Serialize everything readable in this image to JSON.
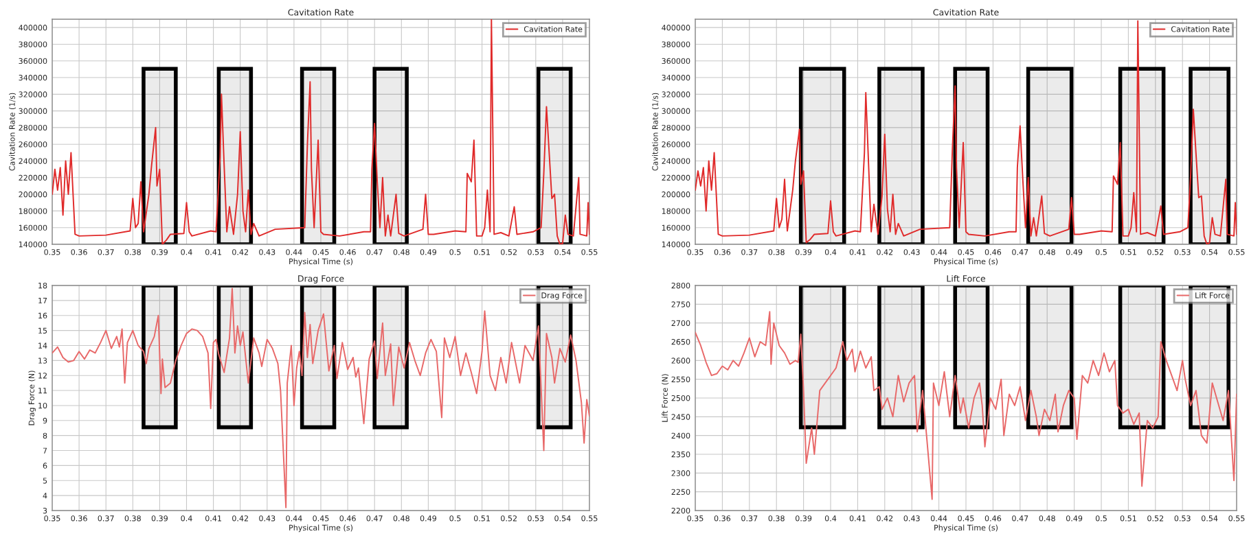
{
  "chart_data": [
    {
      "type": "line",
      "title": "Cavitation Rate",
      "xlabel": "Physical Time (s)",
      "ylabel": "Cavitation Rate (1/s)",
      "legend": "top right",
      "grid": true,
      "line_style": "solid",
      "xlim": [
        0.35,
        0.55
      ],
      "xticks": [
        0.35,
        0.36,
        0.37,
        0.38,
        0.39,
        0.4,
        0.41,
        0.42,
        0.43,
        0.44,
        0.45,
        0.46,
        0.47,
        0.48,
        0.49,
        0.5,
        0.51,
        0.52,
        0.53,
        0.54,
        0.55
      ],
      "ylim": [
        140000,
        410000
      ],
      "yticks": [
        140000,
        160000,
        180000,
        200000,
        220000,
        240000,
        260000,
        280000,
        300000,
        320000,
        340000,
        360000,
        380000,
        400000
      ],
      "bands": [
        {
          "axis": "x",
          "from": 0.384,
          "to": 0.396,
          "color": "#000000"
        },
        {
          "axis": "x",
          "from": 0.412,
          "to": 0.424,
          "color": "#000000"
        },
        {
          "axis": "x",
          "from": 0.443,
          "to": 0.455,
          "color": "#000000"
        },
        {
          "axis": "x",
          "from": 0.47,
          "to": 0.482,
          "color": "#000000"
        },
        {
          "axis": "x",
          "from": 0.531,
          "to": 0.543,
          "color": "#000000"
        }
      ],
      "series": [
        {
          "name": "Cavitation Rate",
          "color": "#e02a2a",
          "x": [
            0.35,
            0.351,
            0.352,
            0.353,
            0.354,
            0.355,
            0.356,
            0.357,
            0.3585,
            0.36,
            0.37,
            0.379,
            0.38,
            0.381,
            0.382,
            0.383,
            0.384,
            0.386,
            0.387,
            0.3885,
            0.389,
            0.39,
            0.391,
            0.3925,
            0.394,
            0.399,
            0.4,
            0.401,
            0.402,
            0.409,
            0.411,
            0.4125,
            0.413,
            0.414,
            0.415,
            0.416,
            0.4175,
            0.419,
            0.42,
            0.421,
            0.422,
            0.423,
            0.424,
            0.425,
            0.427,
            0.433,
            0.444,
            0.445,
            0.446,
            0.4465,
            0.4475,
            0.449,
            0.45,
            0.451,
            0.457,
            0.466,
            0.4685,
            0.469,
            0.47,
            0.471,
            0.472,
            0.473,
            0.474,
            0.475,
            0.476,
            0.478,
            0.479,
            0.481,
            0.488,
            0.489,
            0.49,
            0.492,
            0.5,
            0.504,
            0.5045,
            0.506,
            0.507,
            0.508,
            0.51,
            0.511,
            0.512,
            0.513,
            0.5135,
            0.5145,
            0.517,
            0.52,
            0.522,
            0.523,
            0.529,
            0.532,
            0.533,
            0.534,
            0.535,
            0.536,
            0.537,
            0.538,
            0.539,
            0.54,
            0.541,
            0.542,
            0.544,
            0.546,
            0.5465,
            0.549,
            0.5495,
            0.55
          ],
          "values": [
            200000,
            230000,
            205000,
            232000,
            175000,
            240000,
            200000,
            250000,
            152000,
            150000,
            151000,
            156000,
            195000,
            160000,
            165000,
            215000,
            155000,
            200000,
            235000,
            280000,
            210000,
            230000,
            140000,
            145000,
            152000,
            153000,
            190000,
            155000,
            150000,
            156000,
            155000,
            245000,
            320000,
            235000,
            155000,
            185000,
            152000,
            200000,
            275000,
            180000,
            155000,
            205000,
            152000,
            165000,
            150000,
            158000,
            160000,
            260000,
            335000,
            230000,
            160000,
            265000,
            155000,
            152000,
            150000,
            155000,
            155000,
            230000,
            285000,
            215000,
            160000,
            220000,
            150000,
            175000,
            150000,
            200000,
            153000,
            150000,
            158000,
            200000,
            152000,
            152000,
            156000,
            155000,
            225000,
            215000,
            265000,
            150000,
            150000,
            160000,
            205000,
            155000,
            410000,
            152000,
            154000,
            150000,
            185000,
            152000,
            155000,
            160000,
            225000,
            305000,
            250000,
            195000,
            200000,
            150000,
            140000,
            141000,
            175000,
            152000,
            150000,
            220000,
            152000,
            150000,
            190000,
            152000
          ]
        }
      ]
    },
    {
      "type": "line",
      "title": "Cavitation Rate",
      "xlabel": "Physical Time (s)",
      "ylabel": "Cavitation Rate (1/s)",
      "legend": "top right",
      "grid": true,
      "line_style": "solid",
      "xlim": [
        0.35,
        0.55
      ],
      "xticks": [
        0.35,
        0.36,
        0.37,
        0.38,
        0.39,
        0.4,
        0.41,
        0.42,
        0.43,
        0.44,
        0.45,
        0.46,
        0.47,
        0.48,
        0.49,
        0.5,
        0.51,
        0.52,
        0.53,
        0.54,
        0.55
      ],
      "ylim": [
        140000,
        410000
      ],
      "yticks": [
        140000,
        160000,
        180000,
        200000,
        220000,
        240000,
        260000,
        280000,
        300000,
        320000,
        340000,
        360000,
        380000,
        400000
      ],
      "bands": [
        {
          "axis": "x",
          "from": 0.389,
          "to": 0.405,
          "color": "#000000"
        },
        {
          "axis": "x",
          "from": 0.418,
          "to": 0.434,
          "color": "#000000"
        },
        {
          "axis": "x",
          "from": 0.446,
          "to": 0.458,
          "color": "#000000"
        },
        {
          "axis": "x",
          "from": 0.473,
          "to": 0.489,
          "color": "#000000"
        },
        {
          "axis": "x",
          "from": 0.507,
          "to": 0.523,
          "color": "#000000"
        },
        {
          "axis": "x",
          "from": 0.533,
          "to": 0.547,
          "color": "#000000"
        }
      ],
      "series": [
        {
          "name": "Cavitation Rate",
          "color": "#e02a2a",
          "x": [
            0.35,
            0.351,
            0.352,
            0.353,
            0.354,
            0.355,
            0.356,
            0.357,
            0.3585,
            0.36,
            0.37,
            0.379,
            0.38,
            0.381,
            0.382,
            0.383,
            0.384,
            0.386,
            0.387,
            0.3885,
            0.389,
            0.39,
            0.391,
            0.3925,
            0.394,
            0.399,
            0.4,
            0.401,
            0.402,
            0.409,
            0.411,
            0.4125,
            0.413,
            0.414,
            0.415,
            0.416,
            0.4175,
            0.419,
            0.42,
            0.421,
            0.422,
            0.423,
            0.424,
            0.425,
            0.427,
            0.433,
            0.444,
            0.445,
            0.446,
            0.4465,
            0.4475,
            0.449,
            0.45,
            0.451,
            0.457,
            0.466,
            0.4685,
            0.469,
            0.47,
            0.471,
            0.472,
            0.473,
            0.474,
            0.475,
            0.476,
            0.478,
            0.479,
            0.481,
            0.488,
            0.489,
            0.49,
            0.492,
            0.5,
            0.504,
            0.5045,
            0.506,
            0.507,
            0.508,
            0.51,
            0.511,
            0.512,
            0.513,
            0.5135,
            0.5145,
            0.517,
            0.52,
            0.522,
            0.523,
            0.529,
            0.532,
            0.533,
            0.534,
            0.535,
            0.536,
            0.537,
            0.538,
            0.539,
            0.54,
            0.541,
            0.542,
            0.544,
            0.546,
            0.5465,
            0.549,
            0.5495,
            0.55
          ],
          "values": [
            205000,
            228000,
            210000,
            232000,
            180000,
            240000,
            205000,
            250000,
            152000,
            150000,
            151000,
            156000,
            195000,
            160000,
            170000,
            218000,
            156000,
            205000,
            240000,
            278000,
            212000,
            228000,
            142000,
            146000,
            152000,
            153000,
            192000,
            155000,
            150000,
            156000,
            155000,
            250000,
            322000,
            238000,
            155000,
            188000,
            152000,
            198000,
            272000,
            182000,
            155000,
            200000,
            152000,
            165000,
            150000,
            158000,
            160000,
            255000,
            330000,
            232000,
            160000,
            262000,
            155000,
            152000,
            150000,
            155000,
            155000,
            232000,
            282000,
            218000,
            160000,
            220000,
            150000,
            172000,
            150000,
            198000,
            153000,
            150000,
            158000,
            196000,
            152000,
            152000,
            156000,
            155000,
            222000,
            212000,
            262000,
            150000,
            150000,
            160000,
            202000,
            155000,
            408000,
            152000,
            154000,
            150000,
            186000,
            152000,
            155000,
            160000,
            222000,
            302000,
            248000,
            196000,
            198000,
            150000,
            140000,
            142000,
            172000,
            152000,
            150000,
            218000,
            152000,
            150000,
            190000,
            152000
          ]
        }
      ]
    },
    {
      "type": "line",
      "title": "Drag Force",
      "xlabel": "Physical Time (s)",
      "ylabel": "Drag Force (N)",
      "legend": "top right",
      "grid": true,
      "line_style": "solid",
      "xlim": [
        0.35,
        0.55
      ],
      "xticks": [
        0.35,
        0.36,
        0.37,
        0.38,
        0.39,
        0.4,
        0.41,
        0.42,
        0.43,
        0.44,
        0.45,
        0.46,
        0.47,
        0.48,
        0.49,
        0.5,
        0.51,
        0.52,
        0.53,
        0.54,
        0.55
      ],
      "ylim": [
        3,
        18
      ],
      "yticks": [
        3,
        4,
        5,
        6,
        7,
        8,
        9,
        10,
        11,
        12,
        13,
        14,
        15,
        16,
        17,
        18
      ],
      "bands": [
        {
          "axis": "x",
          "from": 0.384,
          "to": 0.396,
          "color": "#000000"
        },
        {
          "axis": "x",
          "from": 0.412,
          "to": 0.424,
          "color": "#000000"
        },
        {
          "axis": "x",
          "from": 0.443,
          "to": 0.455,
          "color": "#000000"
        },
        {
          "axis": "x",
          "from": 0.47,
          "to": 0.482,
          "color": "#000000"
        },
        {
          "axis": "x",
          "from": 0.531,
          "to": 0.543,
          "color": "#000000"
        }
      ],
      "series": [
        {
          "name": "Drag Force",
          "color": "#e86868",
          "x": [
            0.35,
            0.352,
            0.354,
            0.356,
            0.358,
            0.36,
            0.362,
            0.364,
            0.366,
            0.368,
            0.37,
            0.372,
            0.374,
            0.375,
            0.376,
            0.377,
            0.378,
            0.38,
            0.382,
            0.384,
            0.385,
            0.386,
            0.388,
            0.3895,
            0.3905,
            0.391,
            0.392,
            0.394,
            0.396,
            0.398,
            0.4,
            0.402,
            0.404,
            0.406,
            0.408,
            0.409,
            0.41,
            0.411,
            0.412,
            0.414,
            0.416,
            0.417,
            0.418,
            0.419,
            0.42,
            0.421,
            0.423,
            0.425,
            0.427,
            0.428,
            0.43,
            0.432,
            0.434,
            0.435,
            0.437,
            0.4375,
            0.439,
            0.44,
            0.441,
            0.442,
            0.443,
            0.444,
            0.445,
            0.446,
            0.447,
            0.449,
            0.451,
            0.453,
            0.455,
            0.456,
            0.458,
            0.46,
            0.462,
            0.463,
            0.464,
            0.466,
            0.468,
            0.47,
            0.471,
            0.473,
            0.474,
            0.476,
            0.477,
            0.479,
            0.481,
            0.483,
            0.485,
            0.487,
            0.489,
            0.491,
            0.493,
            0.495,
            0.496,
            0.498,
            0.5,
            0.502,
            0.504,
            0.506,
            0.508,
            0.51,
            0.511,
            0.513,
            0.515,
            0.517,
            0.519,
            0.521,
            0.524,
            0.526,
            0.529,
            0.531,
            0.533,
            0.534,
            0.536,
            0.537,
            0.539,
            0.541,
            0.543,
            0.545,
            0.547,
            0.548,
            0.549,
            0.55
          ],
          "values": [
            13.5,
            13.9,
            13.2,
            12.9,
            13.0,
            13.6,
            13.1,
            13.7,
            13.5,
            14.2,
            15.0,
            13.8,
            14.6,
            13.9,
            15.1,
            11.5,
            14.2,
            15.0,
            14.0,
            13.6,
            12.8,
            13.8,
            14.6,
            16.0,
            10.8,
            13.1,
            11.2,
            11.5,
            13.0,
            14.0,
            14.8,
            15.1,
            15.0,
            14.6,
            13.5,
            9.8,
            14.2,
            14.4,
            13.4,
            12.2,
            14.5,
            17.8,
            13.5,
            15.3,
            14.0,
            14.9,
            11.5,
            14.5,
            13.5,
            12.6,
            14.4,
            13.8,
            12.8,
            11.0,
            3.2,
            11.5,
            14.0,
            10.0,
            12.5,
            13.6,
            12.0,
            16.2,
            13.2,
            15.4,
            12.8,
            15.0,
            16.1,
            12.3,
            14.0,
            11.8,
            14.2,
            12.4,
            13.2,
            11.9,
            12.5,
            8.8,
            13.1,
            14.3,
            11.8,
            15.5,
            12.0,
            14.1,
            10.0,
            13.9,
            12.5,
            14.2,
            13.0,
            12.0,
            13.5,
            14.4,
            13.6,
            9.2,
            14.5,
            13.2,
            14.6,
            12.0,
            13.5,
            12.2,
            10.8,
            13.6,
            16.3,
            12.0,
            11.0,
            13.2,
            11.5,
            14.2,
            11.5,
            14.0,
            13.0,
            15.3,
            7.0,
            14.8,
            13.2,
            11.5,
            13.8,
            12.9,
            14.7,
            13.0,
            10.2,
            7.5,
            10.4,
            9.3
          ]
        }
      ]
    },
    {
      "type": "line",
      "title": "Lift Force",
      "xlabel": "Physical Time (s)",
      "ylabel": "Lift Force (N)",
      "legend": "top right",
      "grid": true,
      "line_style": "solid",
      "xlim": [
        0.35,
        0.55
      ],
      "xticks": [
        0.35,
        0.36,
        0.37,
        0.38,
        0.39,
        0.4,
        0.41,
        0.42,
        0.43,
        0.44,
        0.45,
        0.46,
        0.47,
        0.48,
        0.49,
        0.5,
        0.51,
        0.52,
        0.53,
        0.54,
        0.55
      ],
      "ylim": [
        2200,
        2800
      ],
      "yticks": [
        2200,
        2250,
        2300,
        2350,
        2400,
        2450,
        2500,
        2550,
        2600,
        2650,
        2700,
        2750,
        2800
      ],
      "bands": [
        {
          "axis": "x",
          "from": 0.389,
          "to": 0.405,
          "color": "#000000"
        },
        {
          "axis": "x",
          "from": 0.418,
          "to": 0.434,
          "color": "#000000"
        },
        {
          "axis": "x",
          "from": 0.446,
          "to": 0.458,
          "color": "#000000"
        },
        {
          "axis": "x",
          "from": 0.473,
          "to": 0.489,
          "color": "#000000"
        },
        {
          "axis": "x",
          "from": 0.507,
          "to": 0.523,
          "color": "#000000"
        },
        {
          "axis": "x",
          "from": 0.533,
          "to": 0.547,
          "color": "#000000"
        }
      ],
      "series": [
        {
          "name": "Lift Force",
          "color": "#e86868",
          "x": [
            0.35,
            0.352,
            0.354,
            0.356,
            0.358,
            0.36,
            0.362,
            0.364,
            0.366,
            0.368,
            0.37,
            0.372,
            0.374,
            0.376,
            0.3775,
            0.378,
            0.379,
            0.381,
            0.383,
            0.385,
            0.387,
            0.388,
            0.389,
            0.39,
            0.391,
            0.393,
            0.394,
            0.396,
            0.398,
            0.4,
            0.402,
            0.4045,
            0.406,
            0.408,
            0.409,
            0.411,
            0.413,
            0.415,
            0.416,
            0.418,
            0.419,
            0.421,
            0.423,
            0.425,
            0.427,
            0.429,
            0.431,
            0.432,
            0.434,
            0.4375,
            0.438,
            0.44,
            0.442,
            0.444,
            0.446,
            0.448,
            0.449,
            0.451,
            0.453,
            0.455,
            0.456,
            0.457,
            0.459,
            0.461,
            0.463,
            0.464,
            0.466,
            0.468,
            0.47,
            0.472,
            0.474,
            0.476,
            0.477,
            0.479,
            0.481,
            0.483,
            0.484,
            0.486,
            0.488,
            0.49,
            0.491,
            0.493,
            0.495,
            0.497,
            0.499,
            0.501,
            0.503,
            0.505,
            0.506,
            0.508,
            0.51,
            0.512,
            0.514,
            0.515,
            0.517,
            0.519,
            0.521,
            0.522,
            0.524,
            0.526,
            0.528,
            0.53,
            0.531,
            0.533,
            0.535,
            0.537,
            0.539,
            0.541,
            0.543,
            0.545,
            0.547,
            0.549,
            0.55
          ],
          "values": [
            2675,
            2640,
            2595,
            2560,
            2565,
            2585,
            2575,
            2600,
            2585,
            2620,
            2660,
            2610,
            2650,
            2640,
            2730,
            2590,
            2700,
            2640,
            2620,
            2590,
            2600,
            2595,
            2670,
            2520,
            2326,
            2420,
            2350,
            2520,
            2540,
            2560,
            2580,
            2650,
            2600,
            2630,
            2570,
            2625,
            2580,
            2610,
            2520,
            2530,
            2470,
            2500,
            2450,
            2560,
            2490,
            2540,
            2560,
            2410,
            2520,
            2230,
            2540,
            2480,
            2570,
            2450,
            2560,
            2460,
            2500,
            2420,
            2500,
            2540,
            2480,
            2370,
            2500,
            2470,
            2550,
            2400,
            2510,
            2480,
            2530,
            2440,
            2520,
            2450,
            2400,
            2470,
            2440,
            2510,
            2410,
            2480,
            2520,
            2500,
            2390,
            2560,
            2540,
            2600,
            2560,
            2620,
            2570,
            2600,
            2480,
            2460,
            2470,
            2430,
            2460,
            2265,
            2440,
            2420,
            2450,
            2650,
            2600,
            2560,
            2520,
            2600,
            2550,
            2480,
            2520,
            2400,
            2380,
            2540,
            2490,
            2440,
            2520,
            2280,
            2510
          ]
        }
      ]
    }
  ]
}
